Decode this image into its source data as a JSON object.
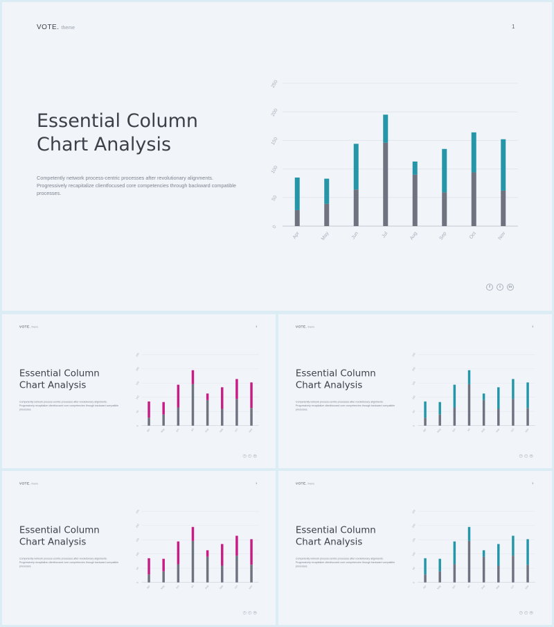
{
  "brand": {
    "name": "VOTE.",
    "theme": "theme"
  },
  "page_number": "1",
  "title_lines": [
    "Essential Column",
    "Chart Analysis"
  ],
  "description": "Competently network process-centric processes after revolutionary alignments. Progressively recapitalize clientfocused core competencies through backward compatible processes.",
  "social": {
    "facebook": "f",
    "twitter": "t",
    "linkedin": "in"
  },
  "colors": {
    "base": "#6f7380",
    "teal": "#2596a8",
    "magenta": "#c81c85"
  },
  "chart_data": [
    {
      "type": "bar",
      "stacked": true,
      "title": "",
      "categories": [
        "Apr",
        "May",
        "Jun",
        "Jul",
        "Aug",
        "Sep",
        "Oct",
        "Nov"
      ],
      "series": [
        {
          "values": [
            28,
            39,
            64,
            146,
            90,
            59,
            94,
            62
          ],
          "color": "#6f7380"
        },
        {
          "values": [
            57,
            44,
            80,
            49,
            23,
            76,
            70,
            90
          ],
          "color": "#2596a8"
        }
      ],
      "ylim": [
        0,
        250
      ],
      "yticks": [
        0,
        50,
        100,
        150,
        200,
        250
      ],
      "grid": true,
      "legend": "none"
    },
    {
      "type": "bar",
      "stacked": true,
      "title": "",
      "categories": [
        "Apr",
        "May",
        "Jun",
        "Jul",
        "Aug",
        "Sep",
        "Oct",
        "Nov"
      ],
      "series": [
        {
          "values": [
            28,
            39,
            64,
            146,
            90,
            59,
            94,
            62
          ],
          "color": "#6f7380"
        },
        {
          "values": [
            57,
            44,
            80,
            49,
            23,
            76,
            70,
            90
          ],
          "color": "#c81c85"
        }
      ],
      "ylim": [
        0,
        250
      ],
      "yticks": [
        0,
        50,
        100,
        150,
        200,
        250
      ],
      "grid": true,
      "legend": "none"
    }
  ]
}
